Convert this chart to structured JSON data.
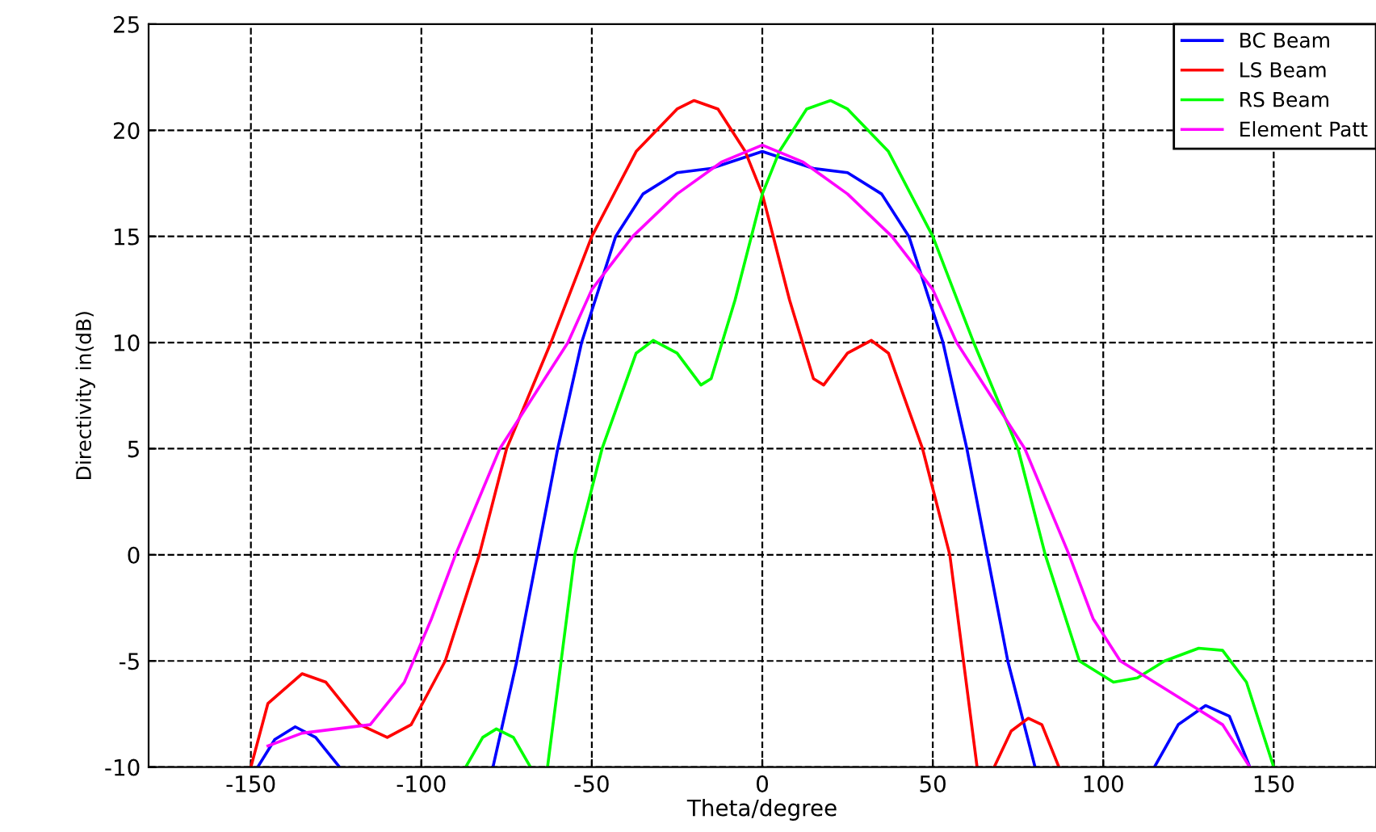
{
  "chart_data": {
    "type": "line",
    "xlabel": "Theta/degree",
    "ylabel": "Directivity in(dB)",
    "xlim": [
      -180,
      180
    ],
    "ylim": [
      -10,
      25
    ],
    "xticks": [
      -150,
      -100,
      -50,
      0,
      50,
      100,
      150
    ],
    "yticks": [
      -10,
      -5,
      0,
      5,
      10,
      15,
      20,
      25
    ],
    "grid": true,
    "legend": "top right",
    "line_style": "solid",
    "marker": "none",
    "series": [
      {
        "name": "BC Beam",
        "color": "#0000ff",
        "x": [
          -148,
          -143,
          -137,
          -131,
          -124,
          -100,
          -79,
          -72,
          -66,
          -60,
          -53,
          -43,
          -35,
          -25,
          -15,
          0,
          15,
          25,
          35,
          43,
          53,
          60,
          66,
          72,
          80,
          100,
          115,
          122,
          130,
          137,
          143
        ],
        "values": [
          -10,
          -8.7,
          -8.1,
          -8.6,
          -10,
          null,
          -10,
          -5,
          0,
          5,
          10,
          15,
          17,
          18,
          18.2,
          19,
          18.2,
          18,
          17,
          15,
          10,
          5,
          0,
          -5,
          -10,
          null,
          -10,
          -8,
          -7.1,
          -7.6,
          -10
        ]
      },
      {
        "name": "LS Beam",
        "color": "#ff0000",
        "x": [
          -150,
          -145,
          -135,
          -128,
          -118,
          -110,
          -103,
          -93,
          -83,
          -75,
          -62,
          -50,
          -37,
          -25,
          -20,
          -13,
          -5,
          0,
          8,
          15,
          18,
          25,
          32,
          37,
          47,
          55,
          59,
          63,
          65,
          68,
          73,
          78,
          82,
          87
        ],
        "values": [
          -10,
          -7,
          -5.6,
          -6,
          -8,
          -8.6,
          -8,
          -5,
          0,
          5,
          10,
          15,
          19,
          21,
          21.4,
          21,
          19,
          17,
          12,
          8.3,
          8,
          9.5,
          10.1,
          9.5,
          5,
          0,
          -5,
          -10,
          null,
          -10,
          -8.3,
          -7.7,
          -8,
          -10
        ]
      },
      {
        "name": "RS Beam",
        "color": "#00ff00",
        "x": [
          -87,
          -82,
          -78,
          -73,
          -68,
          -65,
          -63,
          -59,
          -55,
          -47,
          -37,
          -32,
          -25,
          -18,
          -15,
          -8,
          0,
          5,
          13,
          20,
          25,
          37,
          50,
          62,
          75,
          83,
          93,
          103,
          110,
          118,
          128,
          135,
          142,
          150
        ],
        "values": [
          -10,
          -8.6,
          -8.2,
          -8.6,
          -10,
          null,
          -10,
          -5,
          0,
          5,
          9.5,
          10.1,
          9.5,
          8,
          8.3,
          12,
          17,
          19,
          21,
          21.4,
          21,
          19,
          15,
          10,
          5,
          0,
          -5,
          -6,
          -5.8,
          -5,
          -4.4,
          -4.5,
          -6,
          -10
        ]
      },
      {
        "name": "Element Patt",
        "color": "#ff00ff",
        "x": [
          -145,
          -135,
          -125,
          -115,
          -105,
          -97,
          -90,
          -77,
          -57,
          -50,
          -38,
          -25,
          -12,
          0,
          12,
          25,
          38,
          50,
          57,
          77,
          90,
          97,
          105,
          115,
          125,
          135,
          143
        ],
        "values": [
          -9,
          -8.4,
          -8.2,
          -8,
          -6,
          -3,
          0,
          5,
          10,
          12.5,
          15,
          17,
          18.5,
          19.3,
          18.5,
          17,
          15,
          12.5,
          10,
          5,
          0,
          -3,
          -5,
          -6,
          -7,
          -8,
          -10
        ]
      }
    ]
  }
}
